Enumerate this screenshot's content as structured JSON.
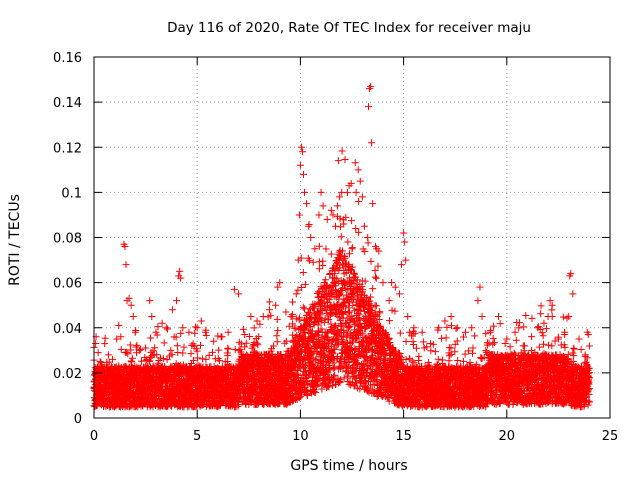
{
  "chart_data": {
    "type": "scatter",
    "title": "Day 116 of 2020, Rate Of TEC Index for receiver maju",
    "xlabel": "GPS time / hours",
    "ylabel": "ROTI / TECUs",
    "xlim": [
      0,
      25
    ],
    "ylim": [
      0,
      0.16
    ],
    "x_ticks": [
      0,
      5,
      10,
      15,
      20,
      25
    ],
    "y_ticks": [
      0,
      0.02,
      0.04,
      0.06,
      0.08,
      0.1,
      0.12,
      0.14,
      0.16
    ],
    "x_tick_labels": [
      "0",
      "5",
      "10",
      "15",
      "20",
      "25"
    ],
    "y_tick_labels": [
      "0",
      "0.02",
      "0.04",
      "0.06",
      "0.08",
      "0.1",
      "0.12",
      "0.14",
      "0.16"
    ],
    "grid": true,
    "marker": "+",
    "color": "#ff0000",
    "series": [
      {
        "name": "ROTI",
        "points": [
          [
            0.1,
            0.036
          ],
          [
            0.2,
            0.029
          ],
          [
            0.3,
            0.025
          ],
          [
            0.5,
            0.021
          ],
          [
            0.7,
            0.028
          ],
          [
            0.9,
            0.026
          ],
          [
            1.0,
            0.022
          ],
          [
            1.1,
            0.035
          ],
          [
            1.2,
            0.041
          ],
          [
            1.3,
            0.036
          ],
          [
            1.45,
            0.077
          ],
          [
            1.5,
            0.076
          ],
          [
            1.55,
            0.068
          ],
          [
            1.6,
            0.052
          ],
          [
            1.7,
            0.053
          ],
          [
            1.8,
            0.05
          ],
          [
            1.9,
            0.045
          ],
          [
            2.0,
            0.038
          ],
          [
            2.2,
            0.03
          ],
          [
            2.5,
            0.031
          ],
          [
            2.7,
            0.052
          ],
          [
            2.8,
            0.045
          ],
          [
            3.0,
            0.038
          ],
          [
            3.3,
            0.042
          ],
          [
            3.5,
            0.04
          ],
          [
            3.8,
            0.048
          ],
          [
            4.0,
            0.052
          ],
          [
            4.1,
            0.063
          ],
          [
            4.15,
            0.065
          ],
          [
            4.2,
            0.062
          ],
          [
            4.3,
            0.04
          ],
          [
            4.6,
            0.038
          ],
          [
            5.0,
            0.04
          ],
          [
            5.2,
            0.043
          ],
          [
            5.4,
            0.038
          ],
          [
            5.8,
            0.034
          ],
          [
            6.2,
            0.036
          ],
          [
            6.5,
            0.038
          ],
          [
            6.8,
            0.057
          ],
          [
            7.0,
            0.055
          ],
          [
            7.3,
            0.037
          ],
          [
            7.6,
            0.045
          ],
          [
            7.9,
            0.043
          ],
          [
            8.2,
            0.045
          ],
          [
            8.5,
            0.048
          ],
          [
            8.8,
            0.05
          ],
          [
            8.9,
            0.058
          ],
          [
            9.0,
            0.06
          ],
          [
            9.3,
            0.047
          ],
          [
            9.6,
            0.045
          ],
          [
            9.8,
            0.055
          ],
          [
            9.9,
            0.07
          ],
          [
            9.95,
            0.09
          ],
          [
            10.0,
            0.112
          ],
          [
            10.05,
            0.12
          ],
          [
            10.1,
            0.118
          ],
          [
            10.15,
            0.108
          ],
          [
            10.2,
            0.1
          ],
          [
            10.3,
            0.095
          ],
          [
            10.4,
            0.085
          ],
          [
            10.5,
            0.08
          ],
          [
            10.7,
            0.075
          ],
          [
            10.9,
            0.09
          ],
          [
            11.0,
            0.1
          ],
          [
            11.1,
            0.094
          ],
          [
            11.3,
            0.088
          ],
          [
            11.5,
            0.092
          ],
          [
            11.7,
            0.085
          ],
          [
            11.8,
            0.094
          ],
          [
            11.9,
            0.098
          ],
          [
            12.0,
            0.1
          ],
          [
            12.1,
            0.086
          ],
          [
            12.3,
            0.078
          ],
          [
            12.5,
            0.075
          ],
          [
            12.7,
            0.1
          ],
          [
            12.8,
            0.11
          ],
          [
            12.9,
            0.105
          ],
          [
            13.0,
            0.098
          ],
          [
            13.1,
            0.085
          ],
          [
            13.3,
            0.138
          ],
          [
            13.35,
            0.146
          ],
          [
            13.4,
            0.147
          ],
          [
            13.45,
            0.122
          ],
          [
            13.5,
            0.095
          ],
          [
            13.7,
            0.075
          ],
          [
            13.8,
            0.074
          ],
          [
            14.0,
            0.06
          ],
          [
            14.3,
            0.052
          ],
          [
            14.6,
            0.058
          ],
          [
            14.8,
            0.055
          ],
          [
            14.9,
            0.068
          ],
          [
            15.0,
            0.082
          ],
          [
            15.05,
            0.078
          ],
          [
            15.1,
            0.07
          ],
          [
            15.2,
            0.045
          ],
          [
            15.5,
            0.04
          ],
          [
            15.9,
            0.038
          ],
          [
            16.3,
            0.033
          ],
          [
            16.7,
            0.04
          ],
          [
            17.0,
            0.043
          ],
          [
            17.3,
            0.045
          ],
          [
            17.6,
            0.04
          ],
          [
            18.0,
            0.038
          ],
          [
            18.3,
            0.04
          ],
          [
            18.6,
            0.052
          ],
          [
            18.7,
            0.058
          ],
          [
            18.8,
            0.045
          ],
          [
            19.2,
            0.038
          ],
          [
            19.6,
            0.045
          ],
          [
            20.0,
            0.035
          ],
          [
            20.4,
            0.038
          ],
          [
            20.8,
            0.032
          ],
          [
            21.2,
            0.03
          ],
          [
            21.5,
            0.04
          ],
          [
            21.8,
            0.042
          ],
          [
            22.0,
            0.045
          ],
          [
            22.1,
            0.052
          ],
          [
            22.2,
            0.05
          ],
          [
            22.5,
            0.035
          ],
          [
            22.8,
            0.038
          ],
          [
            23.0,
            0.045
          ],
          [
            23.05,
            0.063
          ],
          [
            23.1,
            0.064
          ],
          [
            23.2,
            0.055
          ],
          [
            23.5,
            0.035
          ],
          [
            23.8,
            0.028
          ],
          [
            23.9,
            0.038
          ],
          [
            23.95,
            0.037
          ]
        ]
      }
    ]
  }
}
